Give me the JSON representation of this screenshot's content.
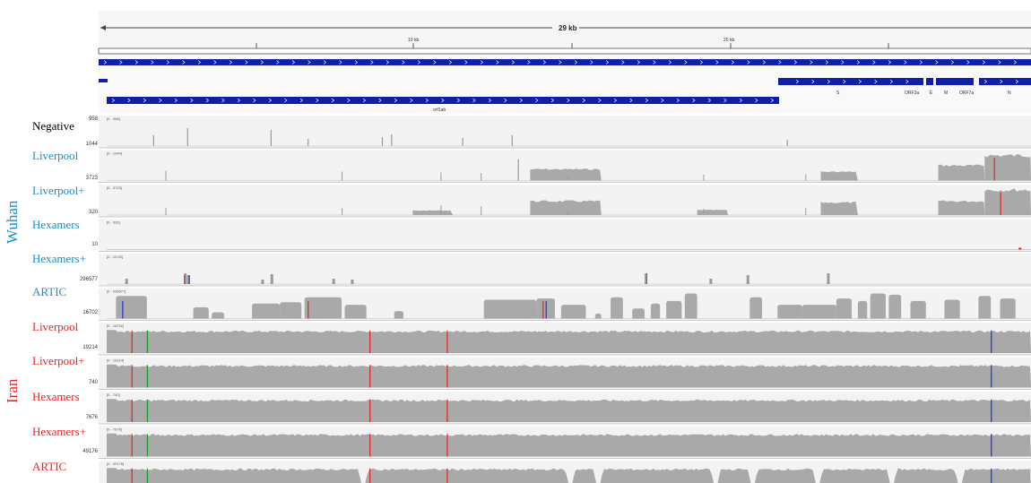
{
  "colors": {
    "wuhan": "#1a8ec9",
    "iran": "#ee2222",
    "negative": "#000000",
    "coverage": "#a9a9a9",
    "gene_blue": "#0f1fa8",
    "mismatch_red": "#e81f1f",
    "mismatch_blue": "#1f2fe0",
    "mismatch_green": "#179a2a"
  },
  "ruler": {
    "span_label": "29 kb",
    "tick_labels": [
      "10 kb",
      "20 kb"
    ]
  },
  "genes": {
    "labels": [
      "orf1ab",
      "S",
      "ORF3a",
      "E",
      "M",
      "ORF7a",
      "N"
    ]
  },
  "groups": [
    {
      "name": "Wuhan",
      "color_key": "wuhan"
    },
    {
      "name": "Iran",
      "color_key": "iran"
    }
  ],
  "chart_data": {
    "type": "area",
    "title": "",
    "xlabel": "",
    "ylabel": "",
    "x_range_kb": [
      0,
      29.9
    ],
    "x_ticks_kb": [
      10,
      20
    ],
    "tracks": [
      {
        "name": "Negative",
        "group": "",
        "max": "958",
        "range": "[0 - 958]",
        "profile": "spikes",
        "spikes_kb": [
          1.5,
          2.6,
          5.3,
          6.5,
          8.9,
          9.2,
          11.5,
          13.1,
          22.0
        ]
      },
      {
        "name": "Liverpool",
        "group": "Wuhan",
        "max": "1044",
        "range": "[0 - 1044]",
        "profile": "blocks",
        "blocks_kb": [
          [
            13.7,
            16.0,
            0.45
          ],
          [
            23.1,
            24.3,
            0.35
          ],
          [
            26.9,
            28.4,
            0.6
          ],
          [
            28.4,
            29.9,
            1.0
          ]
        ],
        "mismatches": [
          {
            "pos_kb": 28.7,
            "color": "red"
          }
        ]
      },
      {
        "name": "Liverpool+",
        "group": "Wuhan",
        "max": "3723",
        "range": "[0 - 3723]",
        "profile": "blocks",
        "blocks_kb": [
          [
            9.9,
            11.2,
            0.18
          ],
          [
            13.7,
            16.0,
            0.55
          ],
          [
            19.1,
            20.1,
            0.2
          ],
          [
            23.1,
            24.3,
            0.5
          ],
          [
            26.9,
            28.4,
            0.55
          ],
          [
            28.4,
            29.9,
            1.0
          ]
        ],
        "mismatches": [
          {
            "pos_kb": 28.9,
            "color": "red"
          }
        ]
      },
      {
        "name": "Hexamers",
        "group": "Wuhan",
        "max": "320",
        "range": "[0 - 320]",
        "profile": "flat"
      },
      {
        "name": "Hexamers+",
        "group": "Wuhan",
        "max": "10",
        "range": "[0 - 10.00]",
        "profile": "bars",
        "bars_kb": [
          0.6,
          2.5,
          2.6,
          5.0,
          5.3,
          7.3,
          7.9,
          17.4,
          19.5,
          20.7,
          23.3
        ]
      },
      {
        "name": "ARTIC",
        "group": "Wuhan",
        "max": "296577",
        "range": "[0 - 296577]",
        "profile": "amplicons",
        "mismatches": [
          {
            "pos_kb": 0.5,
            "color": "blue"
          },
          {
            "pos_kb": 6.5,
            "color": "red"
          },
          {
            "pos_kb": 14.1,
            "color": "red"
          },
          {
            "pos_kb": 14.2,
            "color": "blue"
          }
        ]
      },
      {
        "name": "Liverpool",
        "group": "Iran",
        "max": "16702",
        "range": "[0 - 16702]",
        "profile": "full",
        "mismatches": [
          {
            "pos_kb": 0.8,
            "color": "red"
          },
          {
            "pos_kb": 1.3,
            "color": "green"
          },
          {
            "pos_kb": 8.5,
            "color": "red"
          },
          {
            "pos_kb": 11.0,
            "color": "red"
          },
          {
            "pos_kb": 28.6,
            "color": "blue"
          }
        ]
      },
      {
        "name": "Liverpool+",
        "group": "Iran",
        "max": "19214",
        "range": "[0 - 19214]",
        "profile": "full",
        "mismatches": [
          {
            "pos_kb": 0.8,
            "color": "red"
          },
          {
            "pos_kb": 1.3,
            "color": "green"
          },
          {
            "pos_kb": 8.5,
            "color": "red"
          },
          {
            "pos_kb": 11.0,
            "color": "red"
          },
          {
            "pos_kb": 28.6,
            "color": "blue"
          }
        ]
      },
      {
        "name": "Hexamers",
        "group": "Iran",
        "max": "740",
        "range": "[0 - 740]",
        "profile": "full",
        "mismatches": [
          {
            "pos_kb": 0.8,
            "color": "red"
          },
          {
            "pos_kb": 1.3,
            "color": "green"
          },
          {
            "pos_kb": 8.5,
            "color": "red"
          },
          {
            "pos_kb": 11.0,
            "color": "red"
          },
          {
            "pos_kb": 28.6,
            "color": "blue"
          }
        ]
      },
      {
        "name": "Hexamers+",
        "group": "Iran",
        "max": "7676",
        "range": "[0 - 7676]",
        "profile": "full",
        "mismatches": [
          {
            "pos_kb": 0.8,
            "color": "red"
          },
          {
            "pos_kb": 1.3,
            "color": "green"
          },
          {
            "pos_kb": 8.5,
            "color": "red"
          },
          {
            "pos_kb": 11.0,
            "color": "red"
          },
          {
            "pos_kb": 28.6,
            "color": "blue"
          }
        ]
      },
      {
        "name": "ARTIC",
        "group": "Iran",
        "max": "49176",
        "range": "[0 - 49176]",
        "profile": "full_gaps",
        "gaps_kb": [
          8.3,
          15.0,
          15.9,
          19.7,
          20.9,
          23.0,
          25.4,
          27.6
        ],
        "mismatches": [
          {
            "pos_kb": 0.8,
            "color": "red"
          },
          {
            "pos_kb": 1.3,
            "color": "green"
          },
          {
            "pos_kb": 8.5,
            "color": "red"
          },
          {
            "pos_kb": 11.0,
            "color": "red"
          },
          {
            "pos_kb": 28.6,
            "color": "blue"
          }
        ]
      }
    ]
  }
}
